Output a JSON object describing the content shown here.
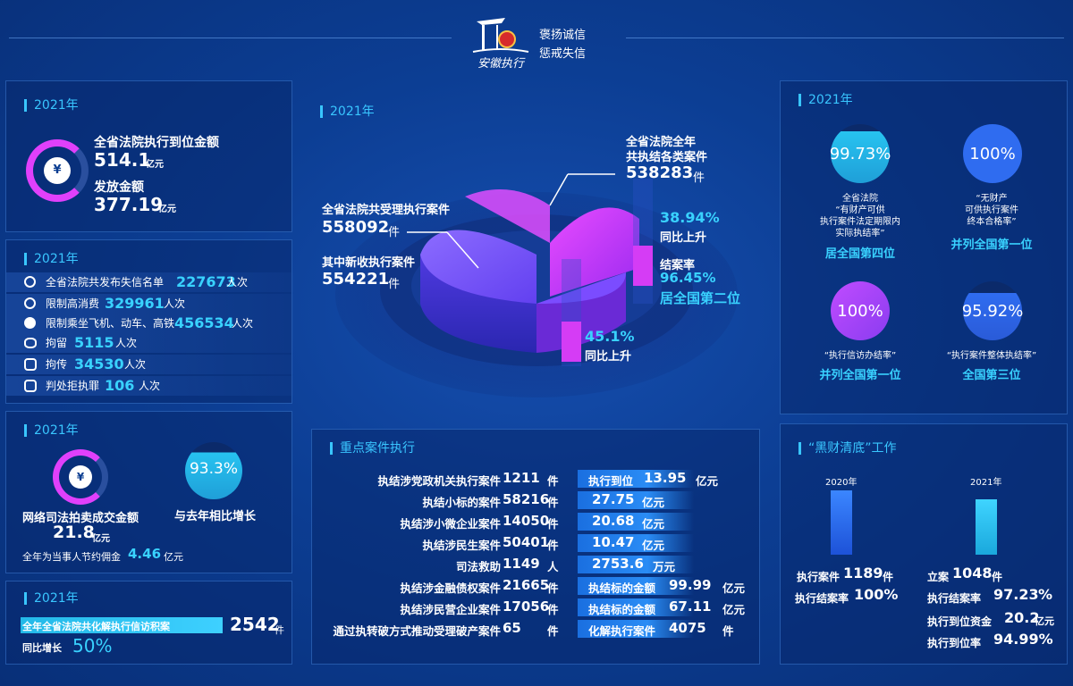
{
  "header": {
    "logo_text": "安徽执行",
    "slogan1": "褒扬诚信",
    "slogan2": "惩戒失信"
  },
  "p1": {
    "year": "2021年",
    "label1": "全省法院执行到位金额",
    "value1": "514.1",
    "unit1": "亿元",
    "label2": "发放金额",
    "value2": "377.19",
    "unit2": "亿元"
  },
  "p2": {
    "year": "2021年",
    "rows": [
      {
        "label": "全省法院共发布失信名单",
        "value": "227673",
        "unit": "人次"
      },
      {
        "label": "限制高消费",
        "value": "329961",
        "unit": "人次"
      },
      {
        "label": "限制乘坐飞机、动车、高铁",
        "value": "456534",
        "unit": "人次"
      },
      {
        "label": "拘留",
        "value": "5115",
        "unit": "人次"
      },
      {
        "label": "拘传",
        "value": "34530",
        "unit": "人次"
      },
      {
        "label": "判处拒执罪",
        "value": "106",
        "unit": "人次"
      }
    ]
  },
  "p3": {
    "year": "2021年",
    "label": "网络司法拍卖成交金额",
    "value": "21.8",
    "unit": "亿元",
    "pct": "93.3%",
    "pct_label": "与去年相比增长",
    "save_label": "全年为当事人节约佣金",
    "save_value": "4.46",
    "save_unit": "亿元"
  },
  "p4": {
    "year": "2021年",
    "label": "全年全省法院共化解执行信访积案",
    "value": "2542",
    "unit": "件",
    "yoy_label": "同比增长",
    "yoy_value": "50%"
  },
  "center": {
    "year": "2021年",
    "l1": "全省法院共受理执行案件",
    "v1": "558092",
    "u1": "件",
    "l2": "其中新收执行案件",
    "v2": "554221",
    "u2": "件",
    "l3a": "全省法院全年",
    "l3b": "共执结各类案件",
    "v3": "538283",
    "u3": "件",
    "pctA": "38.94%",
    "pctA_label": "同比上升",
    "rate_label": "结案率",
    "rate_value": "96.45%",
    "rate_rank": "居全国第二位",
    "pctB": "45.1%",
    "pctB_label": "同比上升"
  },
  "key": {
    "title": "重点案件执行",
    "rows": [
      {
        "label": "执结涉党政机关执行案件",
        "value": "1211",
        "unit": "件",
        "r_label": "执行到位",
        "r_value": "13.95",
        "r_unit": "亿元"
      },
      {
        "label": "执结小标的案件",
        "value": "58216",
        "unit": "件",
        "r_label": "",
        "r_value": "27.75",
        "r_unit": "亿元"
      },
      {
        "label": "执结涉小微企业案件",
        "value": "14050",
        "unit": "件",
        "r_label": "",
        "r_value": "20.68",
        "r_unit": "亿元"
      },
      {
        "label": "执结涉民生案件",
        "value": "50401",
        "unit": "件",
        "r_label": "",
        "r_value": "10.47",
        "r_unit": "亿元"
      },
      {
        "label": "司法救助",
        "value": "1149",
        "unit": "人",
        "r_label": "",
        "r_value": "2753.6",
        "r_unit": "万元"
      },
      {
        "label": "执结涉金融债权案件",
        "value": "21665",
        "unit": "件",
        "r_label": "执结标的金额",
        "r_value": "99.99",
        "r_unit": "亿元"
      },
      {
        "label": "执结涉民营企业案件",
        "value": "17056",
        "unit": "件",
        "r_label": "执结标的金额",
        "r_value": "67.11",
        "r_unit": "亿元"
      },
      {
        "label": "通过执转破方式推动受理破产案件",
        "value": "65",
        "unit": "件",
        "r_label": "化解执行案件",
        "r_value": "4075",
        "r_unit": "件"
      }
    ]
  },
  "rt": {
    "year": "2021年",
    "c1": {
      "pct": "99.73%",
      "d1": "全省法院",
      "d2": "“有财产可供",
      "d3": "执行案件法定期限内",
      "d4": "实际执结率”",
      "rank": "居全国第四位"
    },
    "c2": {
      "pct": "100%",
      "d1": "“无财产",
      "d2": "可供执行案件",
      "d3": "终本合格率”",
      "rank": "并列全国第一位"
    },
    "c3": {
      "pct": "100%",
      "d1": "“执行信访办结率”",
      "rank": "并列全国第一位"
    },
    "c4": {
      "pct": "95.92%",
      "d1": "“执行案件整体执结率”",
      "rank": "全国第三位"
    }
  },
  "rb": {
    "title": "“黑财清底”工作",
    "y2020": "2020年",
    "y2021": "2021年",
    "a_l1": "执行案件",
    "a_v1": "1189",
    "a_u1": "件",
    "a_l2": "执行结案率",
    "a_v2": "100%",
    "b_l1": "立案",
    "b_v1": "1048",
    "b_u1": "件",
    "b_l2": "执行结案率",
    "b_v2": "97.23",
    "b_u2": "%",
    "b_l3": "执行到位资金",
    "b_v3": "20.2",
    "b_u3": "亿元",
    "b_l4": "执行到位率",
    "b_v4": "94.99%"
  },
  "colors": {
    "accent": "#39d2ff",
    "magenta": "#e040fb",
    "purple": "#8a3cf0",
    "blue": "#2f6cf0"
  }
}
